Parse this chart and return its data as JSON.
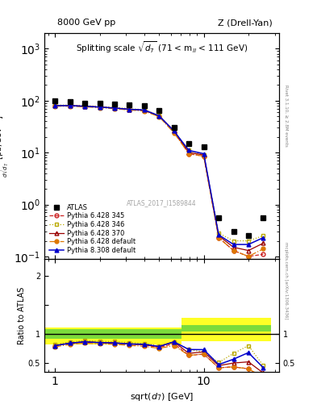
{
  "title_main": "Splitting scale $\\sqrt{d_7}$ (71 < m$_{ll}$ < 111 GeV)",
  "top_left_label": "8000 GeV pp",
  "top_right_label": "Z (Drell-Yan)",
  "ylabel_ratio": "Ratio to ATLAS",
  "watermark": "ATLAS_2017_I1589844",
  "rivet_text": "Rivet 3.1.10, ≥ 2.8M events",
  "mcplots_text": "mcplots.cern.ch [arXiv:1306.3436]",
  "x_atlas": [
    1.0,
    1.26,
    1.58,
    2.0,
    2.51,
    3.16,
    3.98,
    5.01,
    6.31,
    7.94,
    10.0,
    12.59,
    15.85,
    19.95,
    25.12
  ],
  "y_atlas": [
    100,
    95,
    90,
    88,
    85,
    82,
    80,
    65,
    30,
    15,
    13,
    0.55,
    0.3,
    0.25,
    0.55
  ],
  "x_mc": [
    1.0,
    1.26,
    1.58,
    2.0,
    2.51,
    3.16,
    3.98,
    5.01,
    6.31,
    7.94,
    10.0,
    12.59,
    15.85,
    19.95,
    25.12
  ],
  "y_345": [
    80,
    80,
    78,
    75,
    72,
    68,
    65,
    50,
    25,
    9.5,
    8.5,
    0.23,
    0.13,
    0.1,
    0.11
  ],
  "y_346": [
    82,
    82,
    80,
    77,
    74,
    70,
    67,
    52,
    26,
    11,
    9.0,
    0.28,
    0.2,
    0.2,
    0.25
  ],
  "y_370": [
    80,
    80,
    78,
    75,
    72,
    68,
    65,
    51,
    26,
    10,
    9.0,
    0.25,
    0.15,
    0.13,
    0.18
  ],
  "y_default_628": [
    78,
    78,
    76,
    73,
    70,
    66,
    63,
    49,
    24,
    9.5,
    8.5,
    0.23,
    0.13,
    0.1,
    0.14
  ],
  "y_default_830": [
    80,
    80,
    78,
    75,
    72,
    68,
    66,
    51,
    26,
    11,
    9.5,
    0.26,
    0.17,
    0.17,
    0.23
  ],
  "color_345": "#cc2222",
  "color_346": "#bbaa00",
  "color_370": "#990000",
  "color_default_628": "#dd7700",
  "color_default_830": "#0000cc",
  "x_edges": [
    0.85,
    1.12,
    1.41,
    1.78,
    2.24,
    2.82,
    3.55,
    4.47,
    5.62,
    7.08,
    8.91,
    11.22,
    14.13,
    17.78,
    22.39,
    28.18
  ],
  "band_green_lo": [
    0.92,
    0.92,
    0.92,
    0.92,
    0.92,
    0.92,
    0.92,
    0.92,
    0.92,
    1.05,
    1.05,
    1.05,
    1.05,
    1.05,
    1.05
  ],
  "band_green_hi": [
    1.08,
    1.08,
    1.08,
    1.08,
    1.08,
    1.08,
    1.08,
    1.08,
    1.08,
    1.15,
    1.15,
    1.15,
    1.15,
    1.15,
    1.15
  ],
  "band_yellow_lo": [
    0.82,
    0.82,
    0.82,
    0.82,
    0.82,
    0.82,
    0.82,
    0.82,
    0.82,
    0.88,
    0.88,
    0.88,
    0.88,
    0.88,
    0.88
  ],
  "band_yellow_hi": [
    1.12,
    1.12,
    1.12,
    1.12,
    1.12,
    1.12,
    1.12,
    1.12,
    1.12,
    1.28,
    1.28,
    1.28,
    1.28,
    1.28,
    1.28
  ],
  "ylim_main": [
    0.09,
    2000
  ],
  "ylim_ratio": [
    0.35,
    2.3
  ],
  "xlim": [
    0.85,
    32
  ]
}
